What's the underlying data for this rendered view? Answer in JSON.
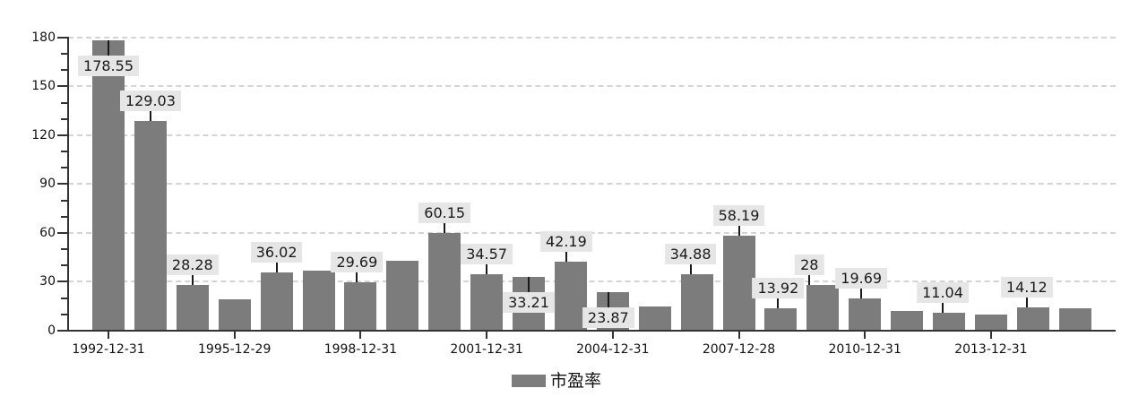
{
  "chart_data": {
    "type": "bar",
    "title": "",
    "legend": {
      "label": "市盈率",
      "swatch_color": "#7c7c7c",
      "position": "bottom-center"
    },
    "grid": "horizontal-dashed",
    "ylim": [
      0,
      180
    ],
    "y_axis": {
      "ticks": [
        0,
        30,
        60,
        90,
        120,
        150,
        180
      ],
      "minor_step": 10
    },
    "x_tick_labels": [
      {
        "index": 0,
        "label": "1992-12-31"
      },
      {
        "index": 3,
        "label": "1995-12-29"
      },
      {
        "index": 6,
        "label": "1998-12-31"
      },
      {
        "index": 9,
        "label": "2001-12-31"
      },
      {
        "index": 12,
        "label": "2004-12-31"
      },
      {
        "index": 15,
        "label": "2007-12-28"
      },
      {
        "index": 18,
        "label": "2010-12-31"
      },
      {
        "index": 21,
        "label": "2013-12-31"
      }
    ],
    "bars": [
      {
        "value": 178.55,
        "label": "178.55",
        "placement": "below"
      },
      {
        "value": 129.03,
        "label": "129.03",
        "placement": "above"
      },
      {
        "value": 28.28,
        "label": "28.28",
        "placement": "above"
      },
      {
        "value": 19.0,
        "label": null,
        "approx": true
      },
      {
        "value": 36.02,
        "label": "36.02",
        "placement": "above"
      },
      {
        "value": 37.1,
        "label": null,
        "approx": true
      },
      {
        "value": 29.69,
        "label": "29.69",
        "placement": "above",
        "dx": -4
      },
      {
        "value": 42.8,
        "label": null,
        "approx": true
      },
      {
        "value": 60.15,
        "label": "60.15",
        "placement": "above"
      },
      {
        "value": 34.57,
        "label": "34.57",
        "placement": "above"
      },
      {
        "value": 33.21,
        "label": "33.21",
        "placement": "below"
      },
      {
        "value": 42.19,
        "label": "42.19",
        "placement": "above",
        "dx": -5
      },
      {
        "value": 23.87,
        "label": "23.87",
        "placement": "below",
        "dx": -5
      },
      {
        "value": 14.6,
        "label": null,
        "approx": true
      },
      {
        "value": 34.88,
        "label": "34.88",
        "placement": "above",
        "dx": -7
      },
      {
        "value": 58.19,
        "label": "58.19",
        "placement": "above"
      },
      {
        "value": 13.92,
        "label": "13.92",
        "placement": "above",
        "dx": -3
      },
      {
        "value": 28,
        "label": "28",
        "placement": "above",
        "dx": -15
      },
      {
        "value": 19.69,
        "label": "19.69",
        "placement": "above",
        "dx": -4
      },
      {
        "value": 12.0,
        "label": null,
        "approx": true
      },
      {
        "value": 11.04,
        "label": "11.04",
        "placement": "above",
        "dx": -7
      },
      {
        "value": 9.8,
        "label": null,
        "approx": true
      },
      {
        "value": 14.12,
        "label": "14.12",
        "placement": "above",
        "dx": -7
      },
      {
        "value": 14.0,
        "label": null,
        "approx": true
      }
    ],
    "colors": {
      "bar": "#7c7c7c",
      "label_bg": "#e6e6e6",
      "label_text": "#1a1a1a",
      "grid": "#d4d4d4",
      "axis": "#333333",
      "axis_text": "#111111",
      "background": "#ffffff",
      "leader": "#1a1a1a"
    }
  }
}
